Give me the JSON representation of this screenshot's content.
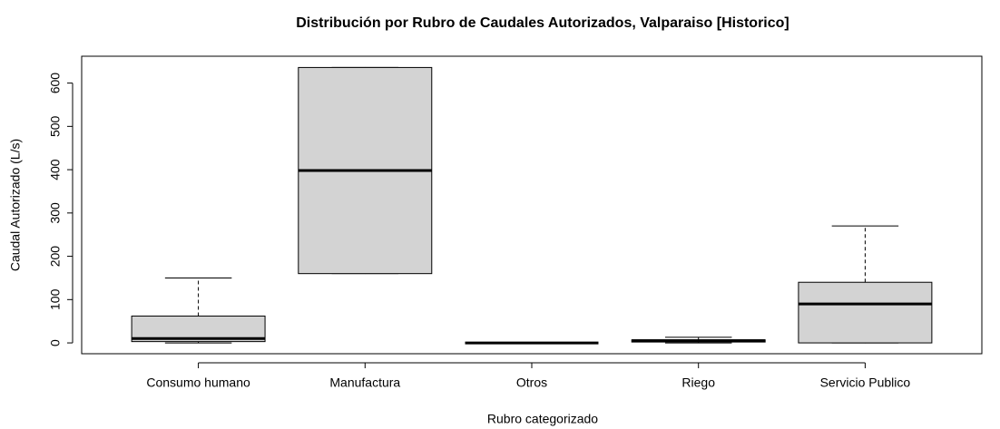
{
  "chart_data": {
    "type": "box",
    "title": "Distribución por Rubro de Caudales Autorizados, Valparaiso [Historico]",
    "x_label": "Rubro categorizado",
    "y_label": "Caudal Autorizado (L/s)",
    "categories": [
      "Consumo humano",
      "Manufactura",
      "Otros",
      "Riego",
      "Servicio Publico"
    ],
    "boxes": [
      {
        "min": 0,
        "q1": 3,
        "median": 10,
        "q3": 62,
        "max": 150
      },
      {
        "min": 160,
        "q1": 160,
        "median": 398,
        "q3": 636,
        "max": 636
      },
      {
        "min": 0,
        "q1": 0,
        "median": 0,
        "q3": 0,
        "max": 0
      },
      {
        "min": 0,
        "q1": 2,
        "median": 5,
        "q3": 7,
        "max": 13
      },
      {
        "min": 0,
        "q1": 0,
        "median": 90,
        "q3": 140,
        "max": 270
      }
    ],
    "color": "#d3d3d3",
    "ylim": [
      -25,
      662
    ],
    "yticks": [
      0,
      100,
      200,
      300,
      400,
      500,
      600
    ]
  }
}
